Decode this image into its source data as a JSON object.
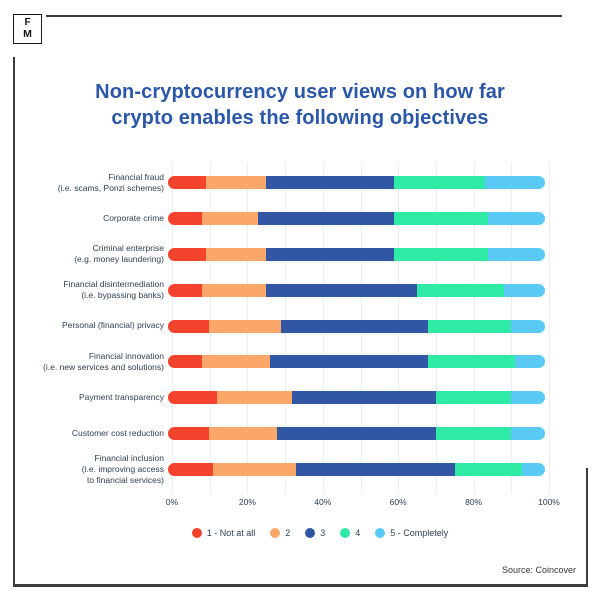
{
  "logo": {
    "top_letter": "F",
    "bottom_letter": "M"
  },
  "title": "Non-cryptocurrency user views on how far\ncrypto enables the following objectives",
  "source": "Source: Coincover",
  "colors": {
    "title": "#2b57a8",
    "text": "#2e4053",
    "grid": "#ecedf1",
    "frame": "#3d3d3d",
    "not_at_all": "#f4432c",
    "two": "#fba76a",
    "three": "#3156a4",
    "four": "#2feba6",
    "five_completely": "#5bc9f6"
  },
  "chart_data": {
    "type": "bar",
    "stacked": true,
    "orientation": "horizontal",
    "title": "Non-cryptocurrency user views on how far crypto enables the following objectives",
    "unit": "percent",
    "xlim": [
      0,
      100
    ],
    "x_ticks": [
      "0%",
      "20%",
      "40%",
      "60%",
      "80%",
      "100%"
    ],
    "grid": "vertical gridlines every 10%",
    "legend_position": "bottom",
    "categories": [
      "Financial fraud\n(i.e. scams, Ponzi schemes)",
      "Corporate crime",
      "Criminal enterprise\n(e.g. money laundering)",
      "Financial disintermediation\n(i.e. bypassing banks)",
      "Personal (financial) privacy",
      "Financial innovation\n(i.e. new services and solutions)",
      "Payment transparency",
      "Customer cost reduction",
      "Financial inclusion\n(i.e. improving access\nto financial services)"
    ],
    "series": [
      {
        "name": "1 - Not at all",
        "color": "#f4432c",
        "values": [
          10,
          9,
          10,
          9,
          11,
          9,
          13,
          11,
          12
        ]
      },
      {
        "name": "2",
        "color": "#fba76a",
        "values": [
          16,
          15,
          16,
          17,
          19,
          18,
          20,
          18,
          22
        ]
      },
      {
        "name": "3",
        "color": "#3156a4",
        "values": [
          34,
          36,
          34,
          40,
          39,
          42,
          38,
          42,
          42
        ]
      },
      {
        "name": "4",
        "color": "#2feba6",
        "values": [
          24,
          25,
          25,
          23,
          22,
          23,
          20,
          20,
          18
        ]
      },
      {
        "name": "5 - Completely",
        "color": "#5bc9f6",
        "values": [
          16,
          15,
          15,
          11,
          9,
          8,
          9,
          9,
          6
        ]
      }
    ]
  }
}
